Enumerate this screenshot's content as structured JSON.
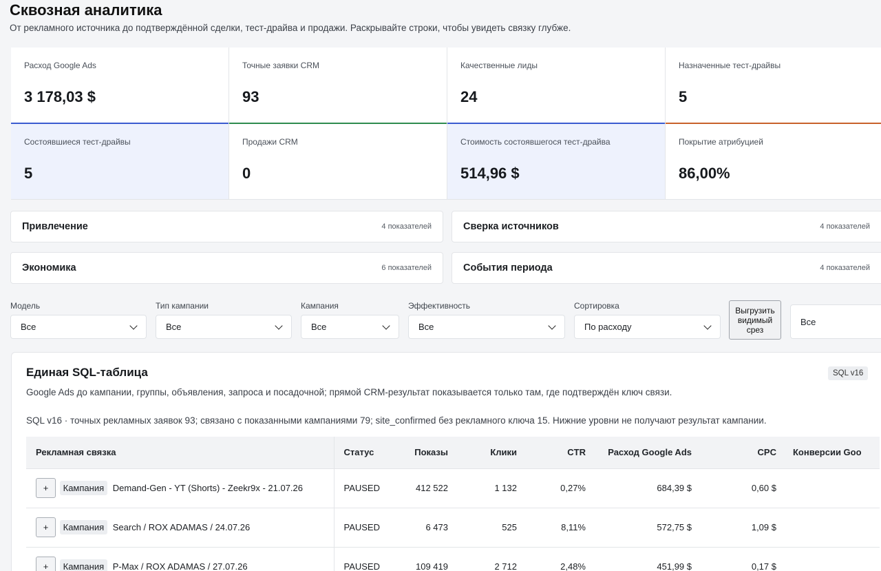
{
  "page": {
    "title": "Сквозная аналитика",
    "subtitle": "От рекламного источника до подтверждённой сделки, тест-драйва и продажи. Раскрывайте строки, чтобы увидеть связку глубже."
  },
  "kpis": [
    {
      "label": "Расход Google Ads",
      "value": "3 178,03 $",
      "accent": "#3a5bd0"
    },
    {
      "label": "Точные заявки CRM",
      "value": "93",
      "accent": "#2e8b4e"
    },
    {
      "label": "Качественные лиды",
      "value": "24",
      "accent": "#3a5bd0"
    },
    {
      "label": "Назначенные тест-драйвы",
      "value": "5",
      "accent": "#c8612a"
    },
    {
      "label": "Состоявшиеся тест-драйвы",
      "value": "5"
    },
    {
      "label": "Продажи CRM",
      "value": "0"
    },
    {
      "label": "Стоимость состоявшегося тест-драйва",
      "value": "514,96 $"
    },
    {
      "label": "Покрытие атрибуцией",
      "value": "86,00%"
    }
  ],
  "sections": [
    {
      "title": "Привлечение",
      "count": "4 показателей"
    },
    {
      "title": "Сверка источников",
      "count": "4 показателей"
    },
    {
      "title": "Экономика",
      "count": "6 показателей"
    },
    {
      "title": "События периода",
      "count": "4 показателей"
    }
  ],
  "filters": [
    {
      "label": "Модель",
      "value": "Все"
    },
    {
      "label": "Тип кампании",
      "value": "Все"
    },
    {
      "label": "Кампания",
      "value": "Все"
    },
    {
      "label": "Эффективность",
      "value": "Все"
    },
    {
      "label": "Сортировка",
      "value": "По расходу"
    }
  ],
  "export_button": {
    "line1": "Выгрузить",
    "line2": "видимый",
    "line3": "срез"
  },
  "right_filter": {
    "value": "Все"
  },
  "table_card": {
    "title": "Единая SQL-таблица",
    "badge": "SQL v16",
    "description": "Google Ads до кампании, группы, объявления, запроса и посадочной; прямой CRM-результат показывается только там, где подтверждён ключ связи.",
    "note": "SQL v16 · точных рекламных заявок 93; связано с показанными кампаниями 79; site_confirmed без рекламного ключа 15. Нижние уровни не получают результат кампании."
  },
  "table": {
    "headers": [
      "Рекламная связка",
      "Статус",
      "Показы",
      "Клики",
      "CTR",
      "Расход Google Ads",
      "CPC",
      "Конверсии Goo"
    ],
    "rows": [
      {
        "expand": "+",
        "level": "Кампания",
        "name": "Demand-Gen - YT (Shorts) - Zeekr9x - 21.07.26",
        "status": "PAUSED",
        "impressions": "412 522",
        "clicks": "1 132",
        "ctr": "0,27%",
        "spend": "684,39 $",
        "cpc": "0,60 $",
        "conv": ""
      },
      {
        "expand": "+",
        "level": "Кампания",
        "name": "Search / ROX ADAMAS / 24.07.26",
        "status": "PAUSED",
        "impressions": "6 473",
        "clicks": "525",
        "ctr": "8,11%",
        "spend": "572,75 $",
        "cpc": "1,09 $",
        "conv": ""
      },
      {
        "expand": "+",
        "level": "Кампания",
        "name": "P-Max / ROX ADAMAS / 27.07.26",
        "status": "PAUSED",
        "impressions": "109 419",
        "clicks": "2 712",
        "ctr": "2,48%",
        "spend": "451,99 $",
        "cpc": "0,17 $",
        "conv": ""
      }
    ]
  }
}
